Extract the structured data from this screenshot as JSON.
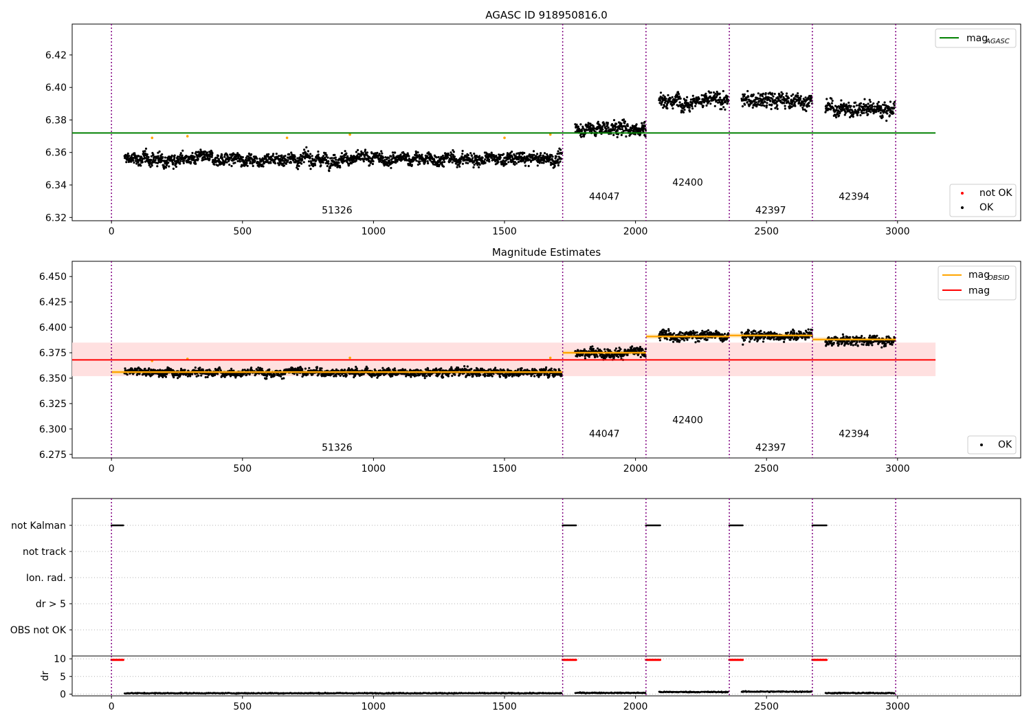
{
  "chart_data": [
    {
      "type": "scatter",
      "title": "AGASC ID 918950816.0",
      "xlabel": "",
      "ylabel": "",
      "xlim": [
        -150,
        3470
      ],
      "ylim": [
        6.318,
        6.439
      ],
      "xticks": [
        0,
        500,
        1000,
        1500,
        2000,
        2500,
        3000
      ],
      "yticks": [
        6.32,
        6.34,
        6.36,
        6.38,
        6.4,
        6.42
      ],
      "ytick_labels": [
        "6.32",
        "6.34",
        "6.36",
        "6.38",
        "6.40",
        "6.42"
      ],
      "grid": false,
      "legend_upper": {
        "position": "top-right",
        "entries": [
          {
            "label": "mag",
            "sub": "AGASC",
            "color": "#008000",
            "kind": "line"
          }
        ]
      },
      "legend_lower": {
        "position": "bottom-right",
        "entries": [
          {
            "label": "not OK",
            "color": "#ff0000",
            "kind": "dot"
          },
          {
            "label": "OK",
            "color": "#000000",
            "kind": "dot"
          }
        ]
      },
      "hlines": [
        {
          "name": "mag_AGASC",
          "y": 6.372,
          "x": [
            -150,
            3145
          ],
          "color": "#008000"
        }
      ],
      "obs_boundaries": [
        0,
        1722,
        2040,
        2358,
        2675,
        2993
      ],
      "segments": [
        {
          "obsid": "51326",
          "x": [
            50,
            1720
          ],
          "mean": 6.356,
          "spread": 0.0075
        },
        {
          "obsid": "44047",
          "x": [
            1770,
            2040
          ],
          "mean": 6.375,
          "spread": 0.009
        },
        {
          "obsid": "42400",
          "x": [
            2090,
            2355
          ],
          "mean": 6.392,
          "spread": 0.0095
        },
        {
          "obsid": "42397",
          "x": [
            2405,
            2675
          ],
          "mean": 6.392,
          "spread": 0.0095
        },
        {
          "obsid": "42394",
          "x": [
            2725,
            2990
          ],
          "mean": 6.387,
          "spread": 0.009
        }
      ],
      "obsid_labels": [
        {
          "text": "51326",
          "x": 861,
          "y": 6.3225
        },
        {
          "text": "44047",
          "x": 1881,
          "y": 6.331
        },
        {
          "text": "42400",
          "x": 1199.5,
          "y": 6.3395,
          "x_center": 2199
        },
        {
          "text": "42397",
          "x": 2516,
          "y": 6.3225
        },
        {
          "text": "42394",
          "x": 2834,
          "y": 6.331
        }
      ],
      "orange_markers": [
        {
          "x": 155,
          "y": 6.369
        },
        {
          "x": 290,
          "y": 6.37
        },
        {
          "x": 670,
          "y": 6.369
        },
        {
          "x": 910,
          "y": 6.371
        },
        {
          "x": 1500,
          "y": 6.369
        },
        {
          "x": 1675,
          "y": 6.371
        }
      ]
    },
    {
      "type": "scatter",
      "title": "Magnitude Estimates",
      "xlabel": "",
      "ylabel": "",
      "xlim": [
        -150,
        3470
      ],
      "ylim": [
        6.2715,
        6.465
      ],
      "xticks": [
        0,
        500,
        1000,
        1500,
        2000,
        2500,
        3000
      ],
      "yticks": [
        6.275,
        6.3,
        6.325,
        6.35,
        6.375,
        6.4,
        6.425,
        6.45
      ],
      "ytick_labels": [
        "6.275",
        "6.300",
        "6.325",
        "6.350",
        "6.375",
        "6.400",
        "6.425",
        "6.450"
      ],
      "grid": false,
      "legend_upper": {
        "position": "top-right",
        "entries": [
          {
            "label": "mag",
            "sub": "OBSID",
            "color": "#ffa500",
            "kind": "line"
          },
          {
            "label": "mag",
            "sub": "",
            "color": "#ff0000",
            "kind": "line"
          }
        ]
      },
      "legend_lower": {
        "position": "bottom-right",
        "entries": [
          {
            "label": "OK",
            "color": "#000000",
            "kind": "dot"
          }
        ]
      },
      "band": {
        "y": [
          6.352,
          6.385
        ],
        "x": [
          -150,
          3145
        ],
        "color": "#ffe0e0"
      },
      "hlines": [
        {
          "name": "mag",
          "y": 6.368,
          "x": [
            -150,
            3145
          ],
          "color": "#ff0000"
        }
      ],
      "obs_boundaries": [
        0,
        1722,
        2040,
        2358,
        2675,
        2993
      ],
      "obsid_means": [
        {
          "x": [
            0,
            1722
          ],
          "y": 6.356
        },
        {
          "x": [
            1722,
            2040
          ],
          "y": 6.375
        },
        {
          "x": [
            2040,
            2358
          ],
          "y": 6.391
        },
        {
          "x": [
            2358,
            2675
          ],
          "y": 6.392
        },
        {
          "x": [
            2675,
            2993
          ],
          "y": 6.388
        }
      ],
      "segments": [
        {
          "obsid": "51326",
          "x": [
            50,
            1720
          ],
          "mean": 6.356,
          "spread": 0.0075
        },
        {
          "obsid": "44047",
          "x": [
            1770,
            2040
          ],
          "mean": 6.375,
          "spread": 0.009
        },
        {
          "obsid": "42400",
          "x": [
            2090,
            2355
          ],
          "mean": 6.392,
          "spread": 0.0095
        },
        {
          "obsid": "42397",
          "x": [
            2405,
            2675
          ],
          "mean": 6.392,
          "spread": 0.0095
        },
        {
          "obsid": "42394",
          "x": [
            2725,
            2990
          ],
          "mean": 6.387,
          "spread": 0.009
        }
      ],
      "obsid_labels": [
        {
          "text": "51326",
          "x": 861,
          "y": 6.2785
        },
        {
          "text": "44047",
          "x": 1881,
          "y": 6.292
        },
        {
          "text": "42400",
          "x": 2199,
          "y": 6.3055
        },
        {
          "text": "42397",
          "x": 2516,
          "y": 6.2785
        },
        {
          "text": "42394",
          "x": 2834,
          "y": 6.292
        }
      ],
      "orange_markers": [
        {
          "x": 155,
          "y": 6.367
        },
        {
          "x": 290,
          "y": 6.369
        },
        {
          "x": 910,
          "y": 6.37
        },
        {
          "x": 1675,
          "y": 6.37
        }
      ]
    },
    {
      "type": "scatter",
      "title": "",
      "xlabel": "",
      "xlim": [
        -150,
        3470
      ],
      "xticks": [
        0,
        500,
        1000,
        1500,
        2000,
        2500,
        3000
      ],
      "flag_rows": [
        "not Kalman",
        "not track",
        "Ion. rad.",
        "dr > 5",
        "OBS not OK"
      ],
      "flag_events": [
        {
          "flag": "not Kalman",
          "x": [
            0,
            45
          ]
        },
        {
          "flag": "not Kalman",
          "x": [
            1722,
            1775
          ]
        },
        {
          "flag": "not Kalman",
          "x": [
            2040,
            2095
          ]
        },
        {
          "flag": "not Kalman",
          "x": [
            2358,
            2410
          ]
        },
        {
          "flag": "not Kalman",
          "x": [
            2675,
            2730
          ]
        }
      ],
      "dr_panel": {
        "ylabel": "dr",
        "ylim": [
          -0.5,
          10.8
        ],
        "yticks": [
          0,
          5,
          10
        ],
        "ytick_labels": [
          "0",
          "5",
          "10"
        ],
        "red_markers": [
          {
            "x": [
              0,
              45
            ],
            "y": 9.7
          },
          {
            "x": [
              1722,
              1775
            ],
            "y": 9.7
          },
          {
            "x": [
              2040,
              2095
            ],
            "y": 9.7
          },
          {
            "x": [
              2358,
              2410
            ],
            "y": 9.7
          },
          {
            "x": [
              2675,
              2730
            ],
            "y": 9.7
          }
        ],
        "dr_segments": [
          {
            "x": [
              50,
              1720
            ],
            "level": 0.25
          },
          {
            "x": [
              1770,
              2040
            ],
            "level": 0.35
          },
          {
            "x": [
              2090,
              2355
            ],
            "level": 0.6
          },
          {
            "x": [
              2405,
              2675
            ],
            "level": 0.7
          },
          {
            "x": [
              2725,
              2990
            ],
            "level": 0.3
          }
        ]
      },
      "obs_boundaries": [
        0,
        1722,
        2040,
        2358,
        2675,
        2993
      ]
    }
  ],
  "colors": {
    "ok": "#000000",
    "not_ok": "#ff0000",
    "obsid": "#ffa500",
    "agasc": "#008000",
    "mag": "#ff0000",
    "boundary": "#800080",
    "band": "#ffe0e0"
  }
}
